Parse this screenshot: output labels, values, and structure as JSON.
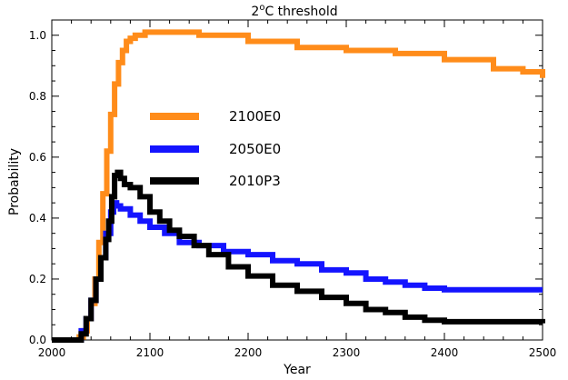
{
  "chart_data": {
    "type": "line",
    "title": "2°C threshold",
    "title_base": "2",
    "title_superscript": "o",
    "title_rest": "C threshold",
    "xlabel": "Year",
    "ylabel": "Probability",
    "xlim": [
      2000,
      2500
    ],
    "ylim": [
      0.0,
      1.05
    ],
    "xticks": [
      2000,
      2100,
      2200,
      2300,
      2400,
      2500
    ],
    "xtick_labels": [
      "2000",
      "2100",
      "2200",
      "2300",
      "2400",
      "2500"
    ],
    "yticks": [
      0.0,
      0.2,
      0.4,
      0.6,
      0.8,
      1.0
    ],
    "ytick_labels": [
      "0.0",
      "0.2",
      "0.4",
      "0.6",
      "0.8",
      "1.0"
    ],
    "grid": false,
    "legend_position": "center-left",
    "series": [
      {
        "name": "2100E0",
        "color": "#ff8c1a",
        "x": [
          2000,
          2025,
          2028,
          2032,
          2036,
          2040,
          2044,
          2048,
          2052,
          2056,
          2060,
          2064,
          2068,
          2072,
          2076,
          2080,
          2085,
          2090,
          2095,
          2100,
          2120,
          2150,
          2200,
          2250,
          2300,
          2350,
          2400,
          2450,
          2480,
          2490,
          2500
        ],
        "y": [
          0.0,
          0.0,
          0.01,
          0.03,
          0.07,
          0.12,
          0.2,
          0.32,
          0.48,
          0.62,
          0.74,
          0.84,
          0.91,
          0.95,
          0.98,
          0.99,
          1.0,
          1.0,
          1.01,
          1.01,
          1.01,
          1.0,
          0.98,
          0.96,
          0.95,
          0.94,
          0.92,
          0.89,
          0.88,
          0.88,
          0.86
        ]
      },
      {
        "name": "2050E0",
        "color": "#1414ff",
        "x": [
          2000,
          2025,
          2030,
          2035,
          2040,
          2045,
          2050,
          2055,
          2060,
          2063,
          2066,
          2070,
          2080,
          2090,
          2100,
          2115,
          2130,
          2150,
          2175,
          2200,
          2225,
          2250,
          2275,
          2300,
          2320,
          2340,
          2360,
          2380,
          2400,
          2450,
          2500
        ],
        "y": [
          0.0,
          0.0,
          0.03,
          0.07,
          0.13,
          0.2,
          0.27,
          0.35,
          0.42,
          0.45,
          0.44,
          0.43,
          0.41,
          0.39,
          0.37,
          0.35,
          0.32,
          0.31,
          0.29,
          0.28,
          0.26,
          0.25,
          0.23,
          0.22,
          0.2,
          0.19,
          0.18,
          0.17,
          0.165,
          0.165,
          0.165
        ]
      },
      {
        "name": "2010P3",
        "color": "#000000",
        "x": [
          2000,
          2022,
          2025,
          2030,
          2035,
          2040,
          2045,
          2050,
          2055,
          2058,
          2061,
          2064,
          2067,
          2070,
          2074,
          2080,
          2090,
          2100,
          2110,
          2120,
          2130,
          2145,
          2160,
          2180,
          2200,
          2225,
          2250,
          2275,
          2300,
          2320,
          2340,
          2360,
          2380,
          2400,
          2450,
          2490,
          2500
        ],
        "y": [
          0.0,
          0.0,
          0.0,
          0.02,
          0.07,
          0.13,
          0.2,
          0.27,
          0.33,
          0.39,
          0.47,
          0.54,
          0.55,
          0.53,
          0.51,
          0.5,
          0.47,
          0.42,
          0.39,
          0.36,
          0.34,
          0.31,
          0.28,
          0.24,
          0.21,
          0.18,
          0.16,
          0.14,
          0.12,
          0.1,
          0.09,
          0.075,
          0.065,
          0.06,
          0.06,
          0.06,
          0.055
        ]
      }
    ]
  }
}
